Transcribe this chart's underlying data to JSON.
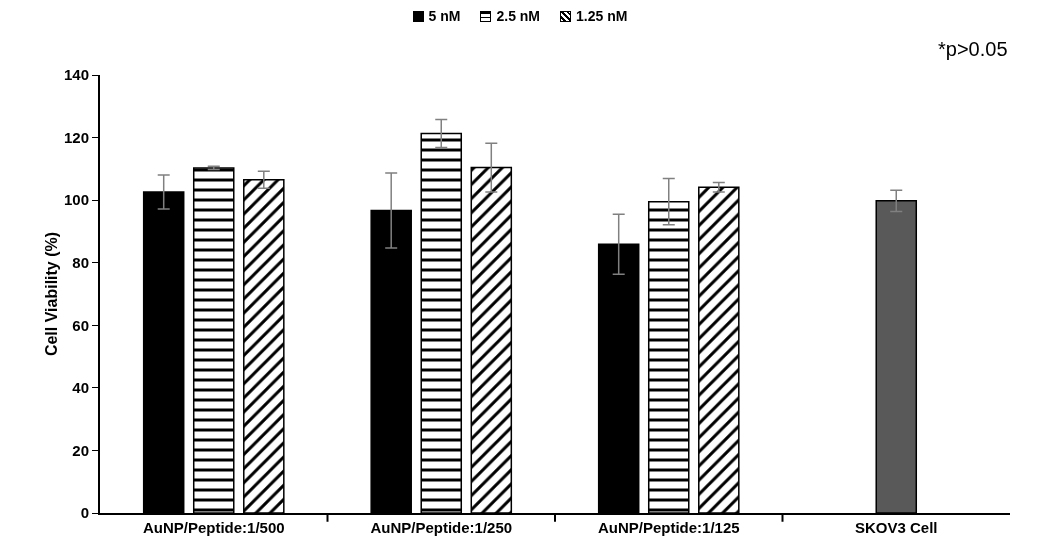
{
  "chart_data": {
    "type": "bar",
    "ylabel": "Cell Viability (%)",
    "categories": [
      "AuNP/Peptide:1/500",
      "AuNP/Peptide:1/250",
      "AuNP/Peptide:1/125",
      "SKOV3 Cell"
    ],
    "series": [
      {
        "name": "5 nM",
        "color": "#000000",
        "values": [
          102.6,
          96.7,
          85.9,
          null
        ],
        "errors": [
          5.4,
          12,
          9.6,
          null
        ]
      },
      {
        "name": "2.5 nM",
        "color": "#000000",
        "values": [
          110.3,
          121.3,
          99.5,
          null
        ],
        "errors": [
          0.5,
          4.5,
          7.4,
          null
        ]
      },
      {
        "name": "1.25 nM",
        "color": "#000000",
        "values": [
          106.5,
          110.4,
          104.1,
          null
        ],
        "errors": [
          2.7,
          7.8,
          1.5,
          null
        ]
      },
      {
        "color": "#595959",
        "values": [
          null,
          null,
          null,
          99.8
        ],
        "errors": [
          null,
          null,
          null,
          3.4
        ]
      }
    ],
    "ylim": [
      0,
      140
    ],
    "yticks": [
      0,
      20,
      40,
      60,
      80,
      100,
      120,
      140
    ],
    "grid": false,
    "legend": "top",
    "annotations": [
      "*p>0.05"
    ]
  }
}
